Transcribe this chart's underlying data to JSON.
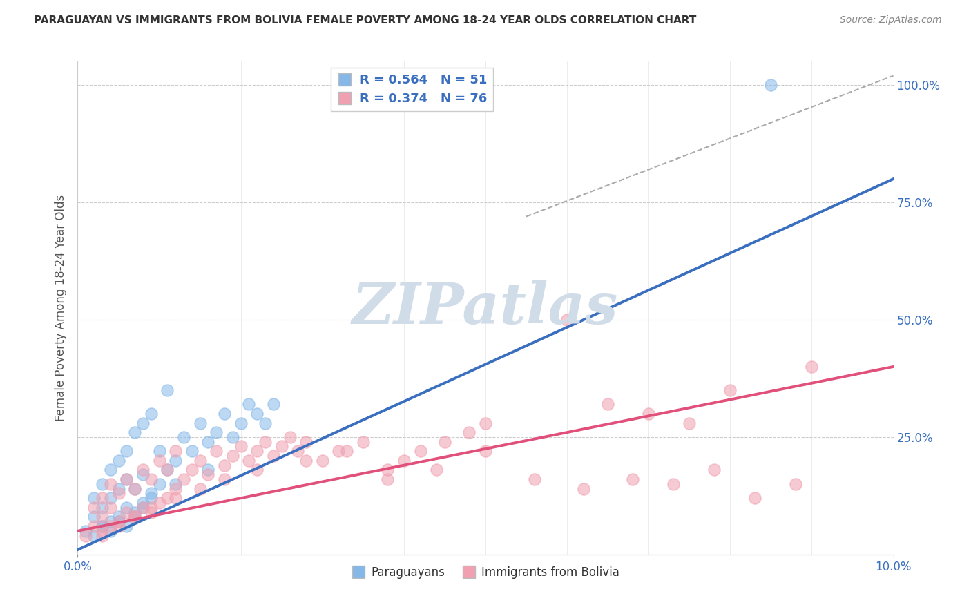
{
  "title": "PARAGUAYAN VS IMMIGRANTS FROM BOLIVIA FEMALE POVERTY AMONG 18-24 YEAR OLDS CORRELATION CHART",
  "source": "Source: ZipAtlas.com",
  "ylabel": "Female Poverty Among 18-24 Year Olds",
  "legend_blue_r": "R = 0.564",
  "legend_blue_n": "N = 51",
  "legend_pink_r": "R = 0.374",
  "legend_pink_n": "N = 76",
  "blue_color": "#85b8e8",
  "pink_color": "#f0a0b0",
  "blue_line_color": "#3a6fc0",
  "pink_line_color": "#e0507a",
  "watermark_color": "#d0dce8",
  "background_color": "#ffffff",
  "grid_color": "#cccccc",
  "xlim": [
    0.0,
    0.1
  ],
  "ylim": [
    0.0,
    1.05
  ],
  "blue_line_x0": 0.0,
  "blue_line_y0": 0.01,
  "blue_line_x1": 0.1,
  "blue_line_y1": 0.8,
  "pink_line_x0": 0.0,
  "pink_line_y0": 0.05,
  "pink_line_x1": 0.1,
  "pink_line_y1": 0.4,
  "dash_line_x0": 0.055,
  "dash_line_y0": 0.72,
  "dash_line_x1": 0.1,
  "dash_line_y1": 1.02,
  "blue_scatter_x": [
    0.001,
    0.002,
    0.002,
    0.003,
    0.003,
    0.003,
    0.004,
    0.004,
    0.004,
    0.005,
    0.005,
    0.005,
    0.006,
    0.006,
    0.006,
    0.007,
    0.007,
    0.007,
    0.008,
    0.008,
    0.008,
    0.009,
    0.009,
    0.01,
    0.01,
    0.011,
    0.011,
    0.012,
    0.013,
    0.014,
    0.015,
    0.016,
    0.017,
    0.018,
    0.019,
    0.02,
    0.021,
    0.022,
    0.023,
    0.024,
    0.002,
    0.003,
    0.004,
    0.005,
    0.006,
    0.007,
    0.008,
    0.009,
    0.012,
    0.016,
    0.085
  ],
  "blue_scatter_y": [
    0.05,
    0.08,
    0.12,
    0.06,
    0.1,
    0.15,
    0.07,
    0.12,
    0.18,
    0.08,
    0.14,
    0.2,
    0.1,
    0.16,
    0.22,
    0.09,
    0.14,
    0.26,
    0.11,
    0.17,
    0.28,
    0.13,
    0.3,
    0.15,
    0.22,
    0.18,
    0.35,
    0.2,
    0.25,
    0.22,
    0.28,
    0.24,
    0.26,
    0.3,
    0.25,
    0.28,
    0.32,
    0.3,
    0.28,
    0.32,
    0.04,
    0.06,
    0.05,
    0.07,
    0.06,
    0.08,
    0.1,
    0.12,
    0.15,
    0.18,
    1.0
  ],
  "pink_scatter_x": [
    0.001,
    0.002,
    0.002,
    0.003,
    0.003,
    0.003,
    0.004,
    0.004,
    0.004,
    0.005,
    0.005,
    0.006,
    0.006,
    0.007,
    0.007,
    0.008,
    0.008,
    0.009,
    0.009,
    0.01,
    0.01,
    0.011,
    0.011,
    0.012,
    0.012,
    0.013,
    0.014,
    0.015,
    0.016,
    0.017,
    0.018,
    0.019,
    0.02,
    0.021,
    0.022,
    0.023,
    0.024,
    0.025,
    0.026,
    0.027,
    0.028,
    0.03,
    0.032,
    0.035,
    0.038,
    0.04,
    0.042,
    0.045,
    0.048,
    0.05,
    0.003,
    0.005,
    0.007,
    0.009,
    0.012,
    0.015,
    0.018,
    0.022,
    0.028,
    0.033,
    0.038,
    0.044,
    0.05,
    0.056,
    0.062,
    0.068,
    0.073,
    0.078,
    0.083,
    0.088,
    0.06,
    0.065,
    0.07,
    0.075,
    0.08,
    0.09
  ],
  "pink_scatter_y": [
    0.04,
    0.06,
    0.1,
    0.05,
    0.08,
    0.12,
    0.06,
    0.1,
    0.15,
    0.07,
    0.13,
    0.09,
    0.16,
    0.08,
    0.14,
    0.1,
    0.18,
    0.09,
    0.16,
    0.11,
    0.2,
    0.12,
    0.18,
    0.14,
    0.22,
    0.16,
    0.18,
    0.2,
    0.17,
    0.22,
    0.19,
    0.21,
    0.23,
    0.2,
    0.22,
    0.24,
    0.21,
    0.23,
    0.25,
    0.22,
    0.24,
    0.2,
    0.22,
    0.24,
    0.18,
    0.2,
    0.22,
    0.24,
    0.26,
    0.28,
    0.04,
    0.06,
    0.08,
    0.1,
    0.12,
    0.14,
    0.16,
    0.18,
    0.2,
    0.22,
    0.16,
    0.18,
    0.22,
    0.16,
    0.14,
    0.16,
    0.15,
    0.18,
    0.12,
    0.15,
    0.5,
    0.32,
    0.3,
    0.28,
    0.35,
    0.4
  ]
}
